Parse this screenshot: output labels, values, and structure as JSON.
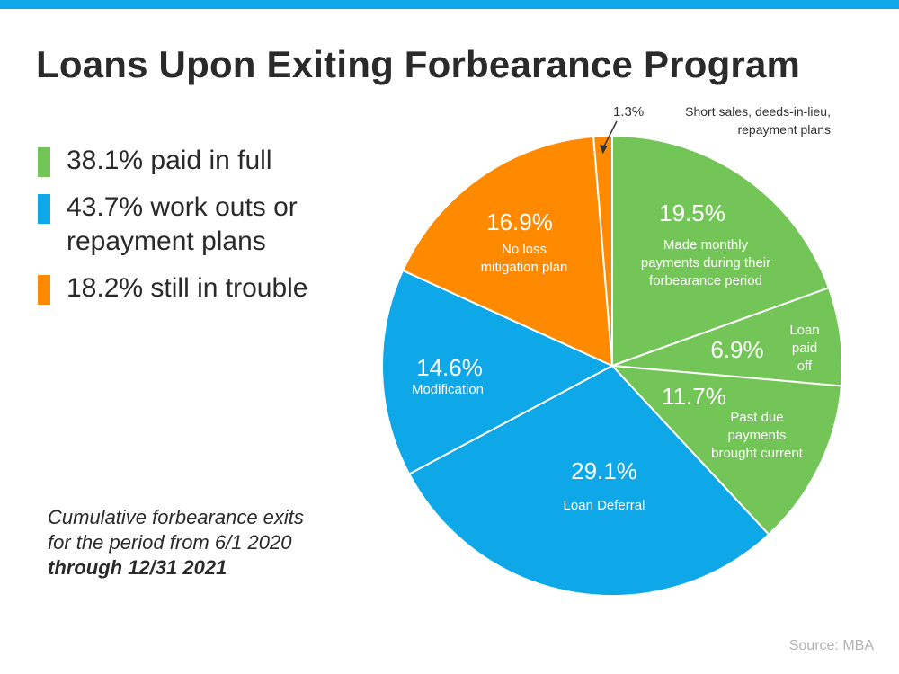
{
  "title": "Loans Upon Exiting Forbearance Program",
  "legend": [
    {
      "label": "38.1% paid in full",
      "color": "#73c557"
    },
    {
      "label_lines": [
        "43.7% work outs or",
        "repayment plans"
      ],
      "color": "#0ea7e8"
    },
    {
      "label": "18.2% still in trouble",
      "color": "#ff8a00"
    }
  ],
  "footnote": {
    "line1": "Cumulative forbearance exits",
    "line2": "for the period from 6/1 2020",
    "line3": "through 12/31 2021"
  },
  "source": "Source: MBA",
  "chart_data": {
    "type": "pie",
    "title": "Loans Upon Exiting Forbearance Program",
    "slices": [
      {
        "name": "made-monthly-payments",
        "value": 19.5,
        "pct_label": "19.5%",
        "desc_lines": [
          "Made monthly",
          "payments during their",
          "forbearance period"
        ],
        "color": "#73c557"
      },
      {
        "name": "loan-paid-off",
        "value": 6.9,
        "pct_label": "6.9%",
        "desc_lines": [
          "Loan",
          "paid",
          "off"
        ],
        "color": "#73c557"
      },
      {
        "name": "past-due-brought-current",
        "value": 11.7,
        "pct_label": "11.7%",
        "desc_lines": [
          "Past due",
          "payments",
          "brought current"
        ],
        "color": "#73c557"
      },
      {
        "name": "loan-deferral",
        "value": 29.1,
        "pct_label": "29.1%",
        "desc_lines": [
          "Loan Deferral"
        ],
        "color": "#0ea7e8"
      },
      {
        "name": "modification",
        "value": 14.6,
        "pct_label": "14.6%",
        "desc_lines": [
          "Modification"
        ],
        "color": "#0ea7e8"
      },
      {
        "name": "no-loss-mitigation",
        "value": 16.9,
        "pct_label": "16.9%",
        "desc_lines": [
          "No loss",
          "mitigation plan"
        ],
        "color": "#ff8a00"
      },
      {
        "name": "short-sales",
        "value": 1.3,
        "pct_label": "1.3%",
        "desc_lines": [
          "Short sales, deeds-in-lieu,",
          "repayment plans"
        ],
        "color": "#ff8a00"
      }
    ]
  }
}
